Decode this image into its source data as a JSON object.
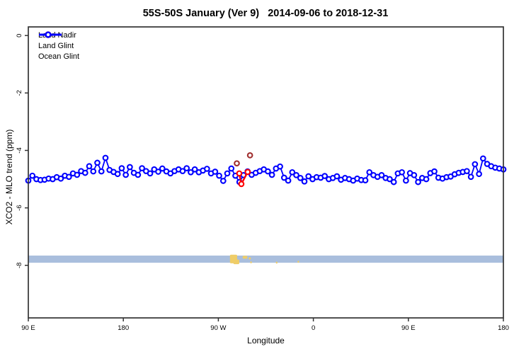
{
  "figure": {
    "title": "55S-50S January (Ver 9)   2014-09-06 to 2018-12-31"
  },
  "chart_data": {
    "type": "line",
    "title": "55S-50S January (Ver 9)   2014-09-06 to 2018-12-31",
    "xlabel": "Longitude",
    "ylabel": "XCO2 - MLO trend (ppm)",
    "xlim": [
      90,
      540
    ],
    "ylim": [
      -9.83,
      0.3
    ],
    "grid": false,
    "x_ticks": {
      "values": [
        90,
        180,
        270,
        360,
        450,
        540
      ],
      "labels": [
        "90 E",
        "180",
        "90 W",
        "0",
        "90 E",
        "180"
      ]
    },
    "y_ticks": {
      "values": [
        0,
        -2,
        -4,
        -6,
        -8
      ],
      "labels": [
        "0",
        "-2",
        "-4",
        "-6",
        "-8"
      ]
    },
    "legend": {
      "position": "top-left",
      "items": [
        {
          "label": "Land Nadir",
          "color": "#a03030"
        },
        {
          "label": "Land Glint",
          "color": "#ff0000"
        },
        {
          "label": "Ocean Glint",
          "color": "#0000ff"
        }
      ]
    },
    "series": [
      {
        "name": "Land Nadir",
        "color": "#a03030",
        "marker": "open-circle",
        "line": false,
        "points": [
          [
            287.5,
            -4.45
          ],
          [
            300.0,
            -4.17
          ]
        ]
      },
      {
        "name": "Land Glint",
        "color": "#ff0000",
        "marker": "open-circle",
        "line": true,
        "points": [
          [
            289.8,
            -4.8
          ],
          [
            291.8,
            -5.17
          ],
          [
            297.8,
            -4.75
          ]
        ]
      },
      {
        "name": "Ocean Glint",
        "color": "#0000ff",
        "marker": "open-circle",
        "line": true,
        "x_start": 90,
        "x_step": 3.8462,
        "values": [
          -5.05,
          -4.88,
          -5.0,
          -5.03,
          -5.02,
          -4.98,
          -5.0,
          -4.93,
          -4.98,
          -4.88,
          -4.92,
          -4.8,
          -4.85,
          -4.72,
          -4.78,
          -4.55,
          -4.73,
          -4.43,
          -4.73,
          -4.26,
          -4.68,
          -4.75,
          -4.82,
          -4.62,
          -4.85,
          -4.58,
          -4.78,
          -4.85,
          -4.62,
          -4.72,
          -4.8,
          -4.66,
          -4.74,
          -4.63,
          -4.73,
          -4.8,
          -4.72,
          -4.66,
          -4.72,
          -4.62,
          -4.76,
          -4.66,
          -4.76,
          -4.7,
          -4.64,
          -4.8,
          -4.74,
          -4.88,
          -5.06,
          -4.8,
          -4.63,
          -4.88,
          -5.1,
          -4.86,
          -4.73,
          -4.85,
          -4.78,
          -4.72,
          -4.66,
          -4.73,
          -4.85,
          -4.63,
          -4.56,
          -4.95,
          -5.05,
          -4.76,
          -4.86,
          -4.96,
          -5.08,
          -4.9,
          -5.0,
          -4.93,
          -4.95,
          -4.89,
          -5.0,
          -4.96,
          -4.9,
          -5.02,
          -4.96,
          -5.0,
          -5.05,
          -4.98,
          -5.03,
          -5.04,
          -4.76,
          -4.86,
          -4.92,
          -4.86,
          -4.96,
          -5.0,
          -5.1,
          -4.8,
          -4.76,
          -5.05,
          -4.79,
          -4.86,
          -5.1,
          -4.96,
          -5.0,
          -4.79,
          -4.73,
          -4.95,
          -4.98,
          -4.93,
          -4.91,
          -4.83,
          -4.78,
          -4.75,
          -4.72,
          -4.92,
          -4.48,
          -4.82,
          -4.28,
          -4.47,
          -4.55,
          -4.6,
          -4.63,
          -4.66
        ]
      }
    ],
    "map_strip": {
      "description": "55S-50S latitude band map strip (ocean with southern South America land)",
      "ocean_color": "#a9bedd",
      "land_color": "#efcd68",
      "value_top": -7.66,
      "value_bottom": -7.91,
      "land_patches": [
        {
          "x": 281.0,
          "y": -7.63,
          "w": 6.8,
          "h": 0.3
        },
        {
          "x": 284.3,
          "y": -7.8,
          "w": 5.5,
          "h": 0.16
        },
        {
          "x": 293.0,
          "y": -7.67,
          "w": 4.5,
          "h": 0.1
        },
        {
          "x": 298.8,
          "y": -7.72,
          "w": 2.0,
          "h": 0.08
        },
        {
          "x": 300.2,
          "y": -7.86,
          "w": 1.5,
          "h": 0.07
        },
        {
          "x": 324.5,
          "y": -7.87,
          "w": 1.5,
          "h": 0.07
        },
        {
          "x": 345.0,
          "y": -7.84,
          "w": 1.5,
          "h": 0.07
        }
      ]
    }
  }
}
